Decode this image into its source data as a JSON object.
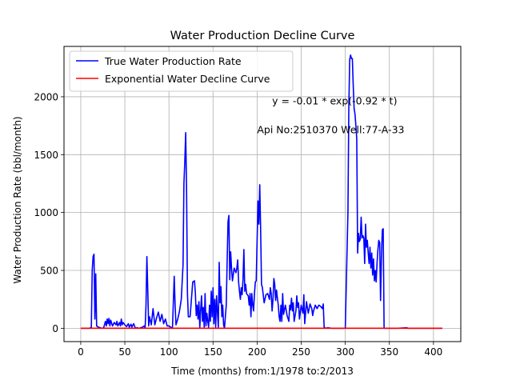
{
  "chart_data": {
    "type": "line",
    "title": "Water Production Decline Curve",
    "xlabel": "Time (months) from:1/1978 to:2/2013",
    "ylabel": "Water Production Rate (bbl/month)",
    "xlim": [
      -19,
      431
    ],
    "ylim": [
      -115,
      2435
    ],
    "xticks": [
      0,
      50,
      100,
      150,
      200,
      250,
      300,
      350,
      400
    ],
    "yticks": [
      0,
      500,
      1000,
      1500,
      2000
    ],
    "grid": true,
    "legend_position": "top-left",
    "annotations": [
      {
        "text": "y = -0.01 * exp(-0.92 * t)",
        "x": 217,
        "y": 1935
      },
      {
        "text": "Api No:2510370   Well:77-A-33",
        "x": 200,
        "y": 1685
      }
    ],
    "series": [
      {
        "name": "True Water Production Rate",
        "color": "#0000ff",
        "points": [
          [
            0,
            0
          ],
          [
            10,
            0
          ],
          [
            12,
            10
          ],
          [
            13,
            500
          ],
          [
            14,
            620
          ],
          [
            15,
            640
          ],
          [
            16,
            80
          ],
          [
            17,
            470
          ],
          [
            18,
            20
          ],
          [
            20,
            10
          ],
          [
            22,
            5
          ],
          [
            24,
            0
          ],
          [
            26,
            5
          ],
          [
            28,
            60
          ],
          [
            29,
            20
          ],
          [
            30,
            80
          ],
          [
            31,
            40
          ],
          [
            32,
            85
          ],
          [
            33,
            20
          ],
          [
            34,
            70
          ],
          [
            36,
            20
          ],
          [
            38,
            50
          ],
          [
            40,
            30
          ],
          [
            41,
            60
          ],
          [
            42,
            20
          ],
          [
            44,
            50
          ],
          [
            45,
            20
          ],
          [
            46,
            80
          ],
          [
            47,
            30
          ],
          [
            48,
            50
          ],
          [
            50,
            30
          ],
          [
            52,
            15
          ],
          [
            54,
            40
          ],
          [
            55,
            10
          ],
          [
            57,
            35
          ],
          [
            58,
            10
          ],
          [
            60,
            40
          ],
          [
            62,
            0
          ],
          [
            64,
            5
          ],
          [
            66,
            0
          ],
          [
            70,
            10
          ],
          [
            72,
            20
          ],
          [
            73,
            0
          ],
          [
            74,
            200
          ],
          [
            75,
            620
          ],
          [
            76,
            330
          ],
          [
            77,
            20
          ],
          [
            78,
            100
          ],
          [
            80,
            30
          ],
          [
            82,
            170
          ],
          [
            84,
            30
          ],
          [
            86,
            90
          ],
          [
            88,
            140
          ],
          [
            90,
            60
          ],
          [
            92,
            120
          ],
          [
            94,
            40
          ],
          [
            96,
            80
          ],
          [
            98,
            20
          ],
          [
            100,
            20
          ],
          [
            102,
            10
          ],
          [
            104,
            0
          ],
          [
            106,
            450
          ],
          [
            107,
            200
          ],
          [
            108,
            30
          ],
          [
            110,
            80
          ],
          [
            112,
            150
          ],
          [
            114,
            250
          ],
          [
            116,
            550
          ],
          [
            117,
            1250
          ],
          [
            118,
            1440
          ],
          [
            119,
            1690
          ],
          [
            120,
            1200
          ],
          [
            121,
            300
          ],
          [
            122,
            100
          ],
          [
            124,
            100
          ],
          [
            126,
            300
          ],
          [
            127,
            400
          ],
          [
            129,
            410
          ],
          [
            130,
            300
          ],
          [
            131,
            110
          ],
          [
            132,
            200
          ],
          [
            133,
            80
          ],
          [
            134,
            230
          ],
          [
            135,
            5
          ],
          [
            136,
            160
          ],
          [
            137,
            280
          ],
          [
            138,
            60
          ],
          [
            139,
            180
          ],
          [
            140,
            10
          ],
          [
            141,
            300
          ],
          [
            142,
            20
          ],
          [
            143,
            130
          ],
          [
            144,
            60
          ],
          [
            145,
            10
          ],
          [
            146,
            200
          ],
          [
            147,
            60
          ],
          [
            148,
            320
          ],
          [
            149,
            100
          ],
          [
            150,
            350
          ],
          [
            151,
            40
          ],
          [
            152,
            250
          ],
          [
            153,
            10
          ],
          [
            154,
            280
          ],
          [
            155,
            140
          ],
          [
            156,
            10
          ],
          [
            157,
            570
          ],
          [
            158,
            220
          ],
          [
            159,
            360
          ],
          [
            160,
            100
          ],
          [
            161,
            200
          ],
          [
            162,
            30
          ],
          [
            163,
            0
          ],
          [
            165,
            200
          ],
          [
            166,
            570
          ],
          [
            167,
            920
          ],
          [
            168,
            975
          ],
          [
            169,
            420
          ],
          [
            170,
            660
          ],
          [
            171,
            520
          ],
          [
            172,
            410
          ],
          [
            174,
            520
          ],
          [
            176,
            480
          ],
          [
            177,
            520
          ],
          [
            178,
            590
          ],
          [
            179,
            400
          ],
          [
            180,
            320
          ],
          [
            181,
            250
          ],
          [
            182,
            350
          ],
          [
            183,
            290
          ],
          [
            184,
            420
          ],
          [
            185,
            680
          ],
          [
            186,
            320
          ],
          [
            187,
            380
          ],
          [
            188,
            300
          ],
          [
            190,
            280
          ],
          [
            191,
            200
          ],
          [
            192,
            300
          ],
          [
            193,
            100
          ],
          [
            194,
            300
          ],
          [
            195,
            200
          ],
          [
            196,
            150
          ],
          [
            197,
            300
          ],
          [
            198,
            400
          ],
          [
            199,
            410
          ],
          [
            200,
            760
          ],
          [
            201,
            1100
          ],
          [
            202,
            900
          ],
          [
            203,
            1240
          ],
          [
            204,
            850
          ],
          [
            205,
            380
          ],
          [
            206,
            350
          ],
          [
            208,
            220
          ],
          [
            210,
            290
          ],
          [
            212,
            300
          ],
          [
            214,
            250
          ],
          [
            215,
            350
          ],
          [
            216,
            300
          ],
          [
            217,
            150
          ],
          [
            218,
            250
          ],
          [
            219,
            430
          ],
          [
            220,
            380
          ],
          [
            221,
            240
          ],
          [
            222,
            330
          ],
          [
            223,
            260
          ],
          [
            224,
            200
          ],
          [
            225,
            100
          ],
          [
            226,
            60
          ],
          [
            227,
            200
          ],
          [
            228,
            60
          ],
          [
            229,
            300
          ],
          [
            230,
            120
          ],
          [
            232,
            200
          ],
          [
            234,
            110
          ],
          [
            236,
            60
          ],
          [
            237,
            200
          ],
          [
            238,
            160
          ],
          [
            239,
            260
          ],
          [
            240,
            150
          ],
          [
            241,
            220
          ],
          [
            242,
            60
          ],
          [
            244,
            150
          ],
          [
            245,
            280
          ],
          [
            246,
            180
          ],
          [
            247,
            220
          ],
          [
            248,
            80
          ],
          [
            250,
            200
          ],
          [
            252,
            130
          ],
          [
            253,
            290
          ],
          [
            254,
            40
          ],
          [
            256,
            230
          ],
          [
            258,
            130
          ],
          [
            260,
            210
          ],
          [
            262,
            170
          ],
          [
            263,
            110
          ],
          [
            264,
            150
          ],
          [
            266,
            200
          ],
          [
            268,
            170
          ],
          [
            270,
            200
          ],
          [
            272,
            190
          ],
          [
            274,
            170
          ],
          [
            275,
            210
          ],
          [
            276,
            10
          ],
          [
            278,
            0
          ],
          [
            280,
            5
          ],
          [
            285,
            0
          ],
          [
            300,
            0
          ],
          [
            303,
            1000
          ],
          [
            304,
            1900
          ],
          [
            305,
            2320
          ],
          [
            306,
            2360
          ],
          [
            307,
            2330
          ],
          [
            308,
            2330
          ],
          [
            309,
            2100
          ],
          [
            310,
            1900
          ],
          [
            311,
            1850
          ],
          [
            312,
            1750
          ],
          [
            313,
            1640
          ],
          [
            314,
            650
          ],
          [
            315,
            820
          ],
          [
            316,
            750
          ],
          [
            317,
            770
          ],
          [
            318,
            960
          ],
          [
            319,
            780
          ],
          [
            320,
            800
          ],
          [
            321,
            780
          ],
          [
            322,
            560
          ],
          [
            323,
            900
          ],
          [
            324,
            700
          ],
          [
            325,
            760
          ],
          [
            326,
            650
          ],
          [
            327,
            560
          ],
          [
            328,
            700
          ],
          [
            329,
            520
          ],
          [
            330,
            650
          ],
          [
            331,
            460
          ],
          [
            332,
            600
          ],
          [
            333,
            410
          ],
          [
            334,
            500
          ],
          [
            335,
            400
          ],
          [
            336,
            560
          ],
          [
            337,
            680
          ],
          [
            338,
            760
          ],
          [
            339,
            740
          ],
          [
            340,
            240
          ],
          [
            341,
            620
          ],
          [
            342,
            850
          ],
          [
            343,
            860
          ],
          [
            344,
            0
          ],
          [
            345,
            0
          ],
          [
            360,
            0
          ],
          [
            370,
            5
          ],
          [
            371,
            0
          ],
          [
            380,
            0
          ],
          [
            400,
            0
          ],
          [
            410,
            0
          ]
        ]
      },
      {
        "name": "Exponential Water Decline Curve",
        "color": "#ff0000",
        "points": [
          [
            0,
            -0.01
          ],
          [
            2,
            -0.002
          ],
          [
            5,
            0
          ],
          [
            410,
            0
          ]
        ]
      }
    ]
  }
}
